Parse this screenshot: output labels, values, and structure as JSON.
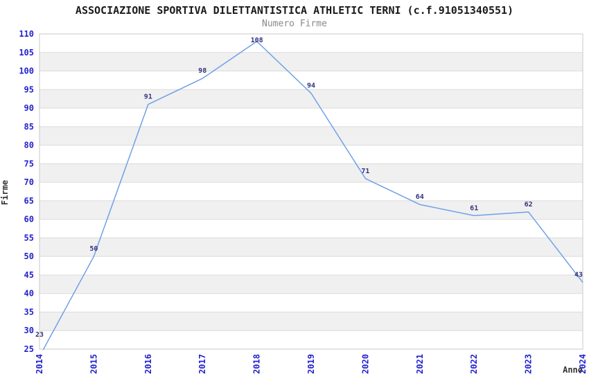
{
  "chart_data": {
    "type": "line",
    "title": "ASSOCIAZIONE SPORTIVA DILETTANTISTICA ATHLETIC TERNI (c.f.91051340551)",
    "subtitle": "Numero Firme",
    "xlabel": "Anno",
    "ylabel": "Firme",
    "categories": [
      "2014",
      "2015",
      "2016",
      "2017",
      "2018",
      "2019",
      "2020",
      "2021",
      "2022",
      "2023",
      "2024"
    ],
    "values": [
      23,
      50,
      91,
      98,
      108,
      94,
      71,
      64,
      61,
      62,
      43
    ],
    "ylim": [
      25,
      110
    ],
    "ytick_step": 5,
    "grid": true,
    "legend": "none",
    "point_labels_visible": true,
    "colors": {
      "line": "#6FA0E8",
      "tick_label": "#2121CE",
      "value_label": "#33337F",
      "band": "#F0F0F0",
      "gridline": "#DBDBDB",
      "plot_border": "#C9C9C9",
      "title": "#1A1A1A",
      "subtitle": "#8A8A8A",
      "axis_title": "#333333",
      "background": "#FFFFFF"
    }
  }
}
